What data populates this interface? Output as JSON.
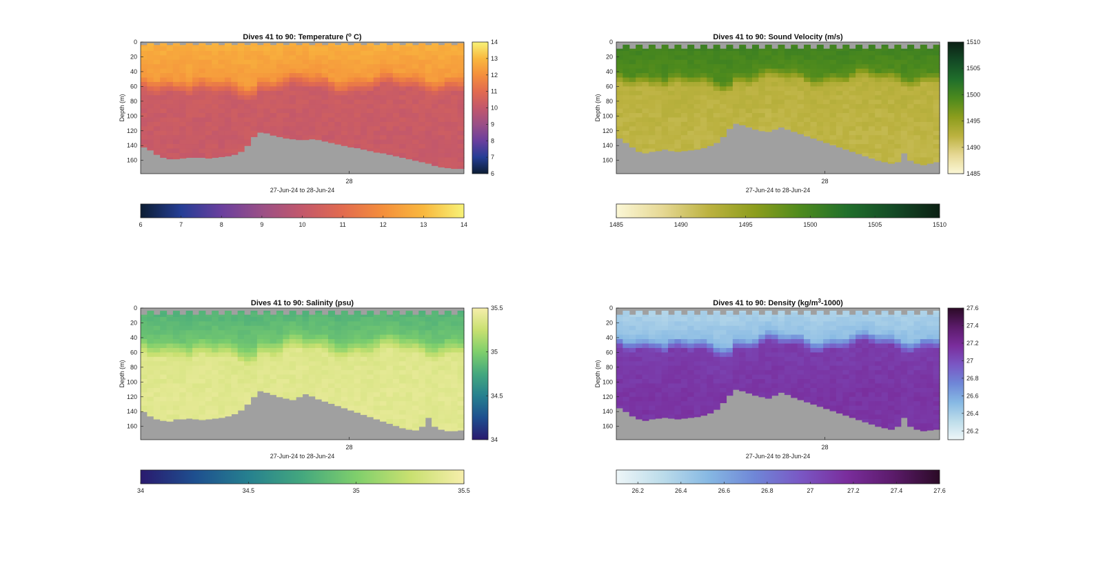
{
  "figure": {
    "bg": "#ffffff",
    "ground_color": "#a0a0a0"
  },
  "chart_data": [
    {
      "type": "heatmap",
      "title": "Dives 41 to 90: Temperature (",
      "title_sup": "o",
      "title_tail": " C)",
      "xlabel": "27-Jun-24 to 28-Jun-24",
      "ylabel": "Depth (m)",
      "x_tick_labels": [
        "28"
      ],
      "y_tick_labels": [
        "0",
        "20",
        "40",
        "60",
        "80",
        "100",
        "120",
        "140",
        "160"
      ],
      "ylim": [
        0,
        178
      ],
      "dives": [
        41,
        90
      ],
      "clim": [
        6,
        14
      ],
      "colorbar_ticks": [
        "6",
        "7",
        "8",
        "9",
        "10",
        "11",
        "12",
        "13",
        "14"
      ],
      "colormap": [
        "#0c1d33",
        "#253e95",
        "#6a3f9e",
        "#9a4f86",
        "#c3586b",
        "#e26b4f",
        "#f48f3c",
        "#f9b83e",
        "#f7f277"
      ],
      "layers": [
        {
          "name": "surface",
          "value": 12.8
        },
        {
          "name": "thermocline",
          "value": 11.3
        },
        {
          "name": "deep",
          "value": 10.3
        }
      ],
      "mixed_layer_depth_m": 45,
      "thermocline_thickness_m": 20,
      "surface_gap_m": 4,
      "seabed_depth_m": [
        142,
        146,
        152,
        156,
        158,
        158,
        157,
        156,
        156,
        156,
        157,
        156,
        155,
        154,
        152,
        148,
        140,
        128,
        122,
        123,
        126,
        128,
        130,
        131,
        132,
        132,
        131,
        132,
        134,
        136,
        138,
        140,
        142,
        143,
        145,
        147,
        149,
        150,
        152,
        154,
        156,
        158,
        160,
        162,
        164,
        167,
        169,
        170,
        171,
        171
      ]
    },
    {
      "type": "heatmap",
      "title": "Dives 41 to 90: Sound Velocity (m/s)",
      "xlabel": "27-Jun-24 to 28-Jun-24",
      "ylabel": "Depth (m)",
      "x_tick_labels": [
        "28"
      ],
      "y_tick_labels": [
        "0",
        "20",
        "40",
        "60",
        "80",
        "100",
        "120",
        "140",
        "160"
      ],
      "ylim": [
        0,
        178
      ],
      "dives": [
        41,
        90
      ],
      "clim": [
        1485,
        1510
      ],
      "colorbar_ticks": [
        "1485",
        "1490",
        "1495",
        "1500",
        "1505",
        "1510"
      ],
      "colormap": [
        "#fbf7d6",
        "#e6d894",
        "#bcb240",
        "#8c9d1d",
        "#4d8a1d",
        "#206f2b",
        "#134a25",
        "#0c2014"
      ],
      "layers": [
        {
          "name": "surface",
          "value": 1500.5
        },
        {
          "name": "thermocline",
          "value": 1496.5
        },
        {
          "name": "deep",
          "value": 1492.5
        }
      ],
      "mixed_layer_depth_m": 40,
      "thermocline_thickness_m": 15,
      "surface_gap_m": 9,
      "seabed_depth_m": [
        130,
        136,
        142,
        148,
        150,
        148,
        147,
        145,
        147,
        148,
        147,
        146,
        145,
        143,
        140,
        136,
        128,
        117,
        110,
        112,
        115,
        118,
        120,
        121,
        118,
        115,
        118,
        121,
        124,
        127,
        130,
        133,
        136,
        139,
        142,
        145,
        148,
        151,
        154,
        157,
        160,
        162,
        164,
        162,
        150,
        160,
        164,
        166,
        164,
        162
      ]
    },
    {
      "type": "heatmap",
      "title": "Dives 41 to 90: Salinity (psu)",
      "xlabel": "27-Jun-24 to 28-Jun-24",
      "ylabel": "Depth (m)",
      "x_tick_labels": [
        "28"
      ],
      "y_tick_labels": [
        "0",
        "20",
        "40",
        "60",
        "80",
        "100",
        "120",
        "140",
        "160"
      ],
      "ylim": [
        0,
        178
      ],
      "dives": [
        41,
        90
      ],
      "clim": [
        34,
        35.5
      ],
      "colorbar_ticks": [
        "34",
        "34.5",
        "35",
        "35.5"
      ],
      "colormap": [
        "#2a1a6e",
        "#1e4f8f",
        "#26808f",
        "#44a87e",
        "#7fcf6c",
        "#c8e070",
        "#f6eeab"
      ],
      "layers": [
        {
          "name": "surface",
          "value": 34.8
        },
        {
          "name": "thermocline",
          "value": 35.18
        },
        {
          "name": "deep",
          "value": 35.36
        }
      ],
      "mixed_layer_depth_m": 40,
      "thermocline_thickness_m": 22,
      "surface_gap_m": 9,
      "seabed_depth_m": [
        140,
        146,
        150,
        152,
        153,
        150,
        150,
        149,
        150,
        151,
        150,
        149,
        148,
        146,
        143,
        138,
        130,
        120,
        112,
        114,
        117,
        120,
        122,
        124,
        120,
        116,
        119,
        123,
        126,
        129,
        132,
        135,
        138,
        141,
        144,
        147,
        150,
        153,
        156,
        159,
        162,
        164,
        165,
        160,
        148,
        160,
        164,
        166,
        166,
        165
      ]
    },
    {
      "type": "heatmap",
      "title": "Dives 41 to 90: Density (kg/m",
      "title_sup": "3",
      "title_tail": "-1000)",
      "xlabel": "27-Jun-24 to 28-Jun-24",
      "ylabel": "Depth (m)",
      "x_tick_labels": [
        "28"
      ],
      "y_tick_labels": [
        "0",
        "20",
        "40",
        "60",
        "80",
        "100",
        "120",
        "140",
        "160"
      ],
      "ylim": [
        0,
        178
      ],
      "dives": [
        41,
        90
      ],
      "clim": [
        26.1,
        27.6
      ],
      "colorbar_ticks": [
        "26.2",
        "26.4",
        "26.6",
        "26.8",
        "27",
        "27.2",
        "27.4",
        "27.6"
      ],
      "colormap": [
        "#eef6f8",
        "#bcdcea",
        "#86b8e3",
        "#6f86d7",
        "#7a57c4",
        "#7a2d9c",
        "#5b1b6a",
        "#2b0a26"
      ],
      "layers": [
        {
          "name": "surface",
          "value": 26.35
        },
        {
          "name": "thermocline",
          "value": 26.75
        },
        {
          "name": "deep",
          "value": 27.08
        }
      ],
      "mixed_layer_depth_m": 38,
      "thermocline_thickness_m": 15,
      "surface_gap_m": 9,
      "seabed_depth_m": [
        135,
        140,
        146,
        150,
        152,
        150,
        149,
        148,
        149,
        150,
        149,
        148,
        147,
        145,
        142,
        137,
        128,
        118,
        110,
        112,
        115,
        118,
        120,
        122,
        118,
        114,
        117,
        121,
        124,
        127,
        130,
        133,
        136,
        139,
        142,
        145,
        148,
        151,
        154,
        157,
        160,
        162,
        164,
        160,
        148,
        160,
        164,
        166,
        165,
        164
      ]
    }
  ]
}
